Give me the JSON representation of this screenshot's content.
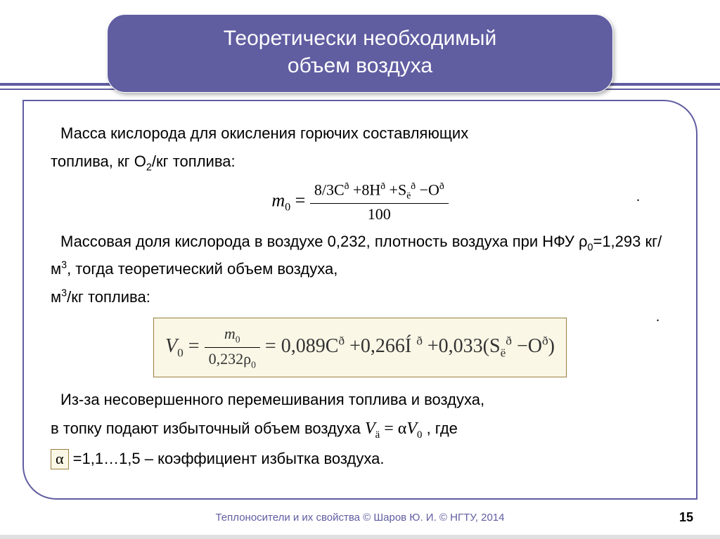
{
  "title": {
    "line1": "Теоретически необходимый",
    "line2": "объем воздуха"
  },
  "body": {
    "p1a": "Масса кислорода для окисления горючих составляющих",
    "p1b": "топлива, кг О",
    "p1c": "/кг топлива:",
    "formula1": {
      "lhs_m": "m",
      "lhs_sub": "0",
      "eq": "=",
      "num": "8/3C",
      "num2": " +8H",
      "num3": " +S",
      "num3sub": "ë",
      "num4": " −O",
      "supR": "ð",
      "den": "100"
    },
    "p2": "Массовая доля кислорода в воздухе 0,232, плотность воздуха при НФУ ρ",
    "p2_sub0": "0",
    "p2_mid": "=1,293 кг/м",
    "p2_sup3": "3",
    "p2_tail": ", тогда теоретический объем воздуха,",
    "p2b": "м",
    "p2b_sup": "3",
    "p2b_tail": "/кг топлива:",
    "formula2": {
      "lhsV": "V",
      "lhs_sub": "0",
      "eq": "=",
      "frac_num_m": "m",
      "frac_num_sub": "0",
      "frac_den": "0,232ρ",
      "frac_den_sub": "0",
      "eq2": "=",
      "t1": "0,089C",
      "plus1": " +0,266Í",
      "space": " ",
      "plus2": " +0,033(S",
      "t2sub": "ë",
      "minus": " −O",
      "close": ")",
      "supR": "ð"
    },
    "p3a": "Из-за несовершенного перемешивания топлива и воздуха,",
    "p3b_pre": "в топку подают избыточный объем воздуха ",
    "p3b_V": "V",
    "p3b_Vsub": "ä",
    "p3b_eq": " = α",
    "p3b_V0": "V",
    "p3b_V0sub": "0",
    "p3b_post": " , где",
    "p4_alpha": "α",
    "p4_tail": " =1,1…1,5 – коэффициент избытка воздуха."
  },
  "footer": "Теплоносители и их свойства © Шаров Ю. И. © НГТУ, 2014",
  "page": "15",
  "colors": {
    "accent": "#605da1",
    "boxborder": "#997d3f",
    "boxbg": "#fbf7e6"
  }
}
